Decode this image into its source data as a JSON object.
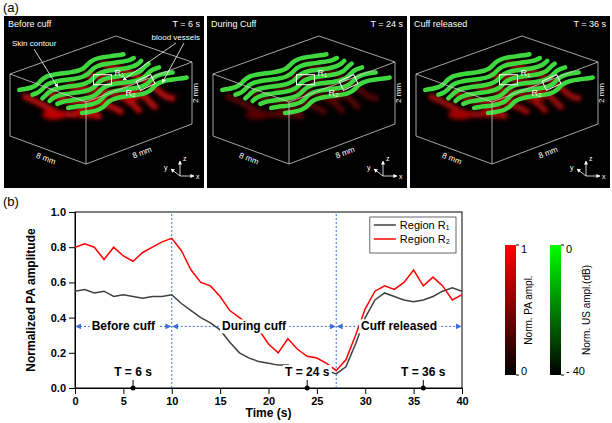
{
  "images": {
    "label": "(a)",
    "panels": [
      {
        "title": "Before cuff",
        "time": "T = 6 s"
      },
      {
        "title": "During Cuff",
        "time": "T = 24 s"
      },
      {
        "title": "Cuff released",
        "time": "T = 36 s"
      }
    ],
    "skin_label": "Skin contour",
    "vessel_label": "blood vessels",
    "regions": [
      "R₁",
      "R₂"
    ],
    "dimensions": [
      "8 mm",
      "8 mm",
      "2 mm"
    ],
    "axes": [
      "x",
      "y",
      "z"
    ]
  },
  "colorbars": [
    {
      "label": "Norm. PA ampl.",
      "range": [
        0,
        1
      ],
      "ticks": [
        0,
        1
      ],
      "colors": [
        "#000000",
        "#ff0000"
      ]
    },
    {
      "label": "Norm. US ampl.(dB)",
      "range": [
        -40,
        0
      ],
      "ticks": [
        {
          "value": -40,
          "label": "- 40"
        },
        0
      ],
      "colors": [
        "#000000",
        "#00ff00"
      ]
    }
  ],
  "chart_data": {
    "type": "line",
    "panel_label": "(b)",
    "x": [
      0,
      1,
      2,
      3,
      4,
      5,
      6,
      7,
      8,
      9,
      10,
      11,
      12,
      13,
      14,
      15,
      16,
      17,
      18,
      19,
      20,
      21,
      22,
      23,
      24,
      25,
      26,
      27,
      28,
      29,
      30,
      31,
      32,
      33,
      34,
      35,
      36,
      37,
      38,
      39,
      40
    ],
    "series": [
      {
        "name": "Region R₁",
        "color": "#404040",
        "values": [
          0.55,
          0.56,
          0.54,
          0.55,
          0.52,
          0.53,
          0.52,
          0.51,
          0.52,
          0.52,
          0.53,
          0.48,
          0.44,
          0.4,
          0.37,
          0.33,
          0.26,
          0.2,
          0.17,
          0.15,
          0.14,
          0.13,
          0.13,
          0.11,
          0.11,
          0.1,
          0.1,
          0.08,
          0.12,
          0.25,
          0.4,
          0.5,
          0.54,
          0.52,
          0.5,
          0.49,
          0.5,
          0.52,
          0.55,
          0.57,
          0.55
        ]
      },
      {
        "name": "Region R₂",
        "color": "#ff0000",
        "values": [
          0.8,
          0.82,
          0.8,
          0.73,
          0.8,
          0.75,
          0.72,
          0.77,
          0.8,
          0.83,
          0.85,
          0.78,
          0.67,
          0.6,
          0.58,
          0.52,
          0.44,
          0.4,
          0.36,
          0.33,
          0.25,
          0.2,
          0.28,
          0.22,
          0.18,
          0.17,
          0.14,
          0.1,
          0.16,
          0.3,
          0.45,
          0.55,
          0.58,
          0.56,
          0.6,
          0.67,
          0.58,
          0.63,
          0.58,
          0.5,
          0.53
        ]
      }
    ],
    "xlim": [
      0,
      40
    ],
    "xticks": [
      0,
      5,
      10,
      15,
      20,
      25,
      30,
      35,
      40
    ],
    "ylim": [
      0,
      1
    ],
    "yticks": [
      {
        "value": 0,
        "label": "0.0"
      },
      {
        "value": 0.2,
        "label": "0.2"
      },
      {
        "value": 0.4,
        "label": "0.4"
      },
      {
        "value": 0.6,
        "label": "0.6"
      },
      {
        "value": 0.8,
        "label": "0.8"
      },
      {
        "value": 1,
        "label": "1.0"
      }
    ],
    "xlabel": "Time (s)",
    "ylabel": "Normalized PA amplitude",
    "legend": "upper right",
    "annotations": {
      "phases": [
        {
          "label": "Before cuff",
          "start": 0,
          "end": 10
        },
        {
          "label": "During cuff",
          "start": 10,
          "end": 27
        },
        {
          "label": "Cuff released",
          "start": 27,
          "end": 40
        }
      ],
      "phase_level": 0.35,
      "time_marks": [
        {
          "label": "T = 6 s",
          "x": 6
        },
        {
          "label": "T = 24 s",
          "x": 24
        },
        {
          "label": "T = 36 s",
          "x": 36
        }
      ]
    }
  }
}
